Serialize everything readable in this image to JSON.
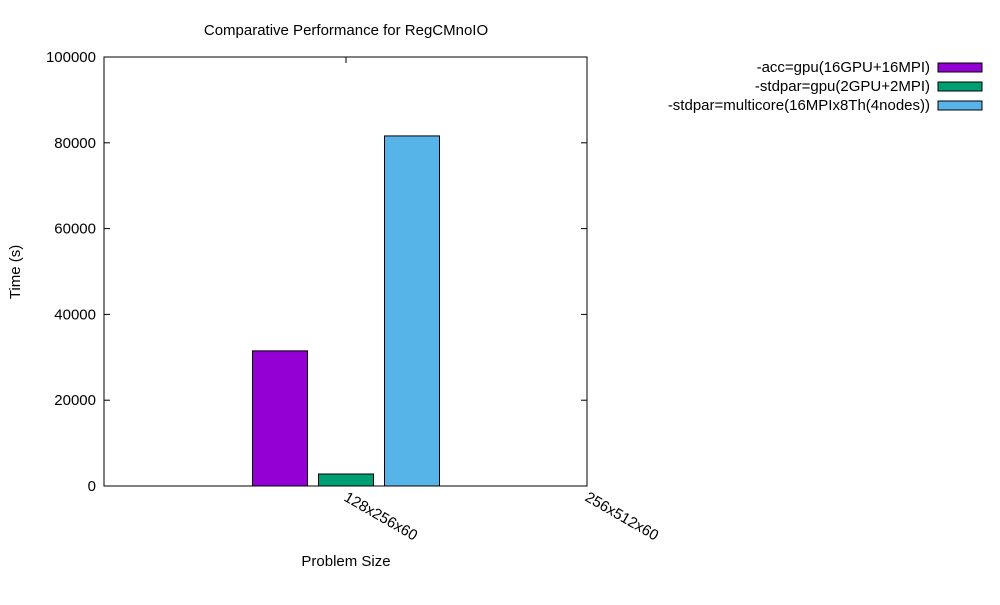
{
  "chart_data": {
    "type": "bar",
    "title": "Comparative Performance for RegCMnoIO",
    "xlabel": "Problem Size",
    "ylabel": "Time (s)",
    "ylim": [
      0,
      100000
    ],
    "yticks": [
      0,
      20000,
      40000,
      60000,
      80000,
      100000
    ],
    "categories": [
      "128x256x60",
      "256x512x60"
    ],
    "legend_position": "top-right outside",
    "grid": false,
    "series": [
      {
        "name": "-acc=gpu(16GPU+16MPI)",
        "color": "#9400D3",
        "values": [
          31500,
          null
        ]
      },
      {
        "name": "-stdpar=gpu(2GPU+2MPI)",
        "color": "#009E73",
        "values": [
          2800,
          null
        ]
      },
      {
        "name": "-stdpar=multicore(16MPIx8Th(4nodes))",
        "color": "#56B4E9",
        "values": [
          81600,
          null
        ]
      }
    ]
  }
}
